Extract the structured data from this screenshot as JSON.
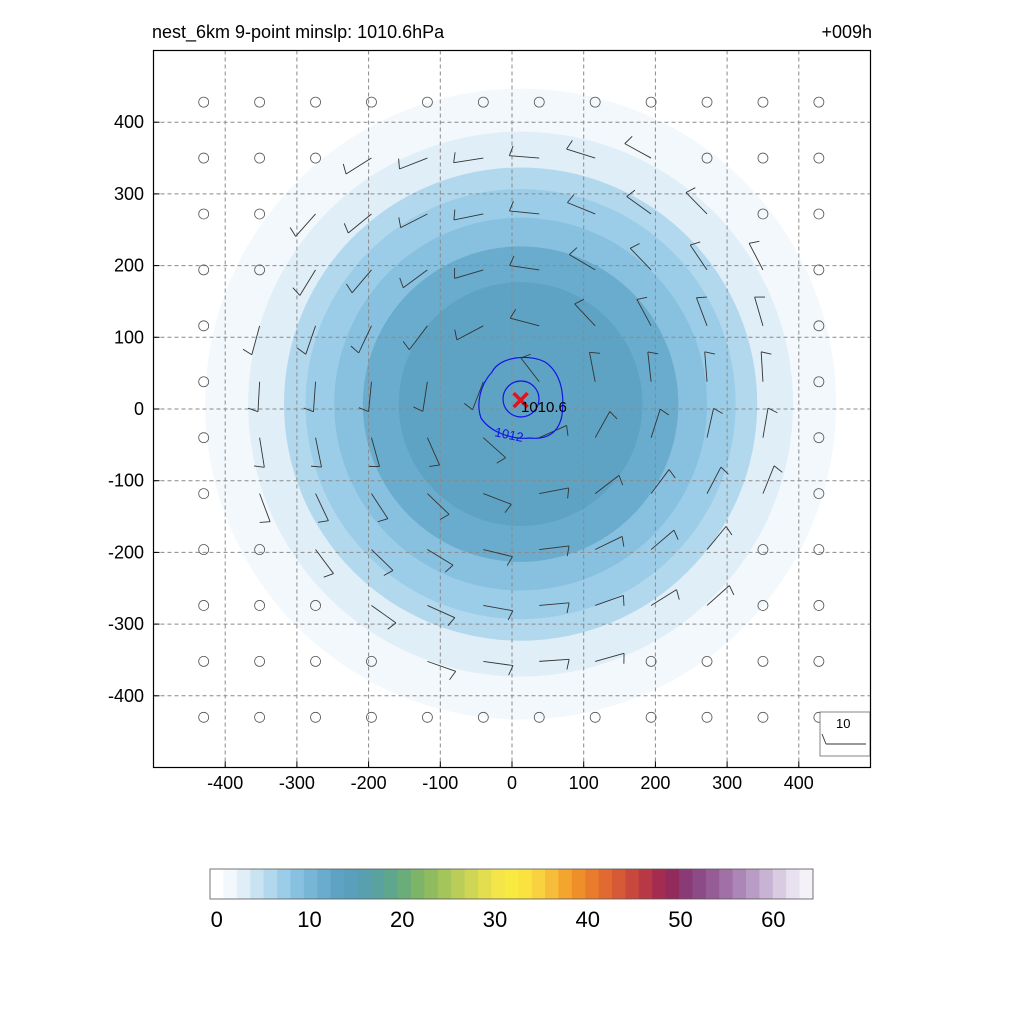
{
  "chart_data": {
    "type": "heatmap",
    "title": "nest_6km  9-point minslp: 1010.6hPa",
    "forecast_hour": "+009h",
    "xlim": [
      -500,
      500
    ],
    "ylim": [
      -500,
      500
    ],
    "xticks": [
      -400,
      -300,
      -200,
      -100,
      0,
      100,
      200,
      300,
      400
    ],
    "yticks": [
      -400,
      -300,
      -200,
      -100,
      0,
      100,
      200,
      300,
      400
    ],
    "grid": true,
    "center": {
      "x": 12,
      "y": 18,
      "label": "1010.6",
      "marker_color": "#e0141e"
    },
    "wind_speed_field": {
      "peak_value": 16,
      "levels_radius": [
        {
          "r": 490,
          "value": 1
        },
        {
          "r": 440,
          "value": 2
        },
        {
          "r": 380,
          "value": 4
        },
        {
          "r": 330,
          "value": 6
        },
        {
          "r": 300,
          "value": 8
        },
        {
          "r": 260,
          "value": 10
        },
        {
          "r": 220,
          "value": 12
        },
        {
          "r": 170,
          "value": 14
        }
      ]
    },
    "pressure_contour": {
      "value": "1012",
      "color": "#1414e6"
    },
    "wind_reference_label": "10",
    "colorbar": {
      "min": 0,
      "max": 65,
      "tick_values": [
        0,
        10,
        20,
        30,
        40,
        50,
        60
      ],
      "tick_labels": [
        "0",
        "10",
        "20",
        "30",
        "40",
        "50",
        "60"
      ],
      "colors": [
        "#ffffff",
        "#f2f8fc",
        "#e0eef8",
        "#c9e3f3",
        "#b2d8ee",
        "#9ccde8",
        "#88c1e0",
        "#78b6d6",
        "#6aaccd",
        "#5ea3c4",
        "#5a9fbc",
        "#589fb0",
        "#5aa29f",
        "#5fa78c",
        "#6aad78",
        "#7cb468",
        "#8fbc5e",
        "#a4c55a",
        "#bacd58",
        "#cfd655",
        "#e2de50",
        "#f3e54a",
        "#f8ea40",
        "#fae33e",
        "#f9d240",
        "#f7bd3a",
        "#f4a52e",
        "#ef8f2a",
        "#e97b2c",
        "#e06a30",
        "#d65a36",
        "#c8483e",
        "#b83846",
        "#a42c50",
        "#922a5c",
        "#8a3a74",
        "#8c4a86",
        "#955c96",
        "#a070a6",
        "#ac86b6",
        "#b99cc6",
        "#c8b3d4",
        "#d8cbe2",
        "#e8e1ef",
        "#f5f1f8"
      ]
    }
  }
}
